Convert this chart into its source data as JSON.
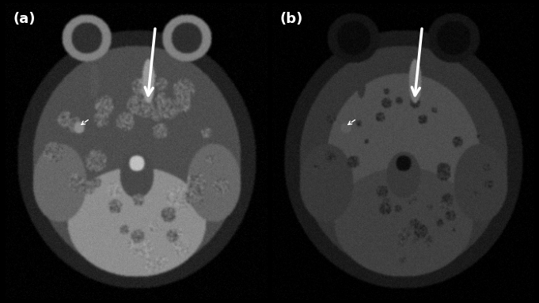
{
  "figure_width": 6.81,
  "figure_height": 3.83,
  "dpi": 100,
  "background_color": "#000000",
  "panels": [
    "(a)",
    "(b)"
  ],
  "label_color": "#ffffff",
  "label_fontsize": 13,
  "border_color": "#666666",
  "border_linewidth": 1.5
}
